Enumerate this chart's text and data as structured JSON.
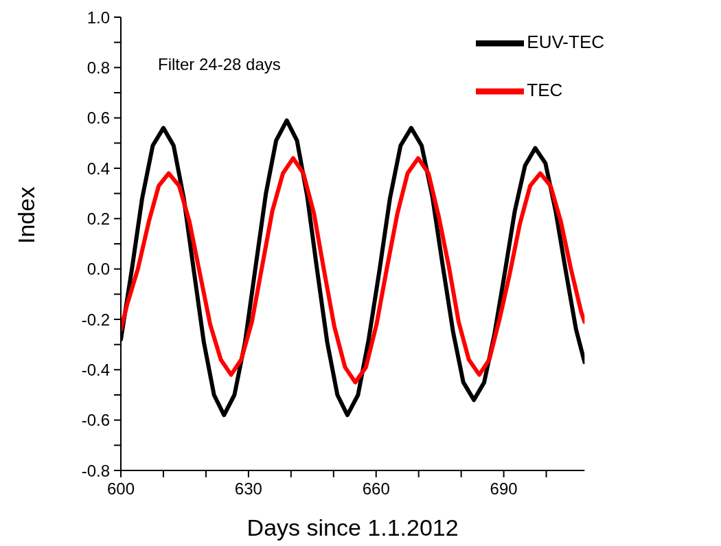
{
  "chart_data": {
    "type": "line",
    "xlabel": "Days since 1.1.2012",
    "ylabel": "Index",
    "annotations": [
      "Filter 24-28 days"
    ],
    "xlim": [
      600,
      709
    ],
    "xticks": [
      600,
      {
        "value": 610,
        "label": null
      },
      {
        "value": 620,
        "label": null
      },
      630,
      {
        "value": 640,
        "label": null
      },
      {
        "value": 650,
        "label": null
      },
      660,
      {
        "value": 670,
        "label": null
      },
      {
        "value": 680,
        "label": null
      },
      690,
      {
        "value": 700,
        "label": null
      }
    ],
    "ylim": [
      -0.8,
      1.0
    ],
    "yticks": [
      {
        "value": -0.8,
        "label": "-0.8"
      },
      {
        "value": -0.7,
        "label": null
      },
      {
        "value": -0.6,
        "label": "-0.6"
      },
      {
        "value": -0.5,
        "label": null
      },
      {
        "value": -0.4,
        "label": "-0.4"
      },
      {
        "value": -0.3,
        "label": null
      },
      {
        "value": -0.2,
        "label": "-0.2"
      },
      {
        "value": -0.1,
        "label": null
      },
      {
        "value": 0,
        "label": "0.0"
      },
      {
        "value": 0.1,
        "label": null
      },
      {
        "value": 0.2,
        "label": "0.2"
      },
      {
        "value": 0.3,
        "label": null
      },
      {
        "value": 0.4,
        "label": "0.4"
      },
      {
        "value": 0.5,
        "label": null
      },
      {
        "value": 0.6,
        "label": "0.6"
      },
      {
        "value": 0.7,
        "label": null
      },
      {
        "value": 0.8,
        "label": "0.8"
      },
      {
        "value": 0.9,
        "label": null
      },
      {
        "value": 1.0,
        "label": "1.0"
      }
    ],
    "grid": false,
    "legend": "top right",
    "marker": "none",
    "line_style": "solid",
    "series": [
      {
        "name": "EUV-TEC",
        "color": "#000000",
        "x": [
          600,
          602.6,
          605,
          607.5,
          610,
          612.4,
          614.8,
          617.1,
          619.5,
          621.9,
          624.25,
          626.7,
          629.2,
          631.6,
          634.1,
          636.5,
          639,
          641.4,
          643.8,
          646.1,
          648.5,
          650.9,
          653.25,
          655.75,
          658.25,
          660.75,
          663.25,
          665.75,
          668.25,
          670.7,
          673.2,
          675.6,
          678.1,
          680.5,
          683,
          685.4,
          687.8,
          690.2,
          692.6,
          695,
          697.4,
          699.8,
          702.2,
          704.6,
          707,
          709
        ],
        "values": [
          -0.28,
          0.0,
          0.28,
          0.49,
          0.56,
          0.49,
          0.28,
          0.0,
          -0.29,
          -0.5,
          -0.58,
          -0.5,
          -0.29,
          0.0,
          0.3,
          0.51,
          0.59,
          0.51,
          0.29,
          0.0,
          -0.29,
          -0.5,
          -0.58,
          -0.5,
          -0.28,
          -0.01,
          0.28,
          0.49,
          0.56,
          0.49,
          0.29,
          0.02,
          -0.25,
          -0.45,
          -0.52,
          -0.45,
          -0.26,
          -0.02,
          0.23,
          0.41,
          0.48,
          0.42,
          0.23,
          -0.01,
          -0.24,
          -0.37
        ]
      },
      {
        "name": "TEC",
        "color": "#ff0000",
        "x": [
          600,
          601.5,
          604,
          606.6,
          608.9,
          611.25,
          613.7,
          616.1,
          618.6,
          621,
          623.5,
          625.9,
          628.3,
          630.8,
          633.2,
          635.6,
          638.1,
          640.5,
          642.9,
          645.4,
          647.8,
          650.2,
          652.7,
          655.1,
          657.6,
          660.1,
          662.5,
          665,
          667.4,
          669.9,
          672.3,
          674.7,
          677.1,
          679.4,
          681.8,
          684.25,
          686.6,
          689,
          691.4,
          693.8,
          696.2,
          698.6,
          701,
          703.4,
          705.8,
          708.2,
          709
        ],
        "values": [
          -0.24,
          -0.14,
          0.0,
          0.19,
          0.33,
          0.38,
          0.33,
          0.19,
          -0.02,
          -0.22,
          -0.36,
          -0.42,
          -0.36,
          -0.21,
          0.01,
          0.23,
          0.38,
          0.44,
          0.38,
          0.22,
          -0.01,
          -0.23,
          -0.39,
          -0.45,
          -0.39,
          -0.22,
          0.0,
          0.22,
          0.38,
          0.44,
          0.38,
          0.21,
          0.01,
          -0.21,
          -0.36,
          -0.42,
          -0.36,
          -0.2,
          -0.02,
          0.18,
          0.33,
          0.38,
          0.33,
          0.19,
          0.0,
          -0.17,
          -0.21
        ]
      }
    ]
  }
}
